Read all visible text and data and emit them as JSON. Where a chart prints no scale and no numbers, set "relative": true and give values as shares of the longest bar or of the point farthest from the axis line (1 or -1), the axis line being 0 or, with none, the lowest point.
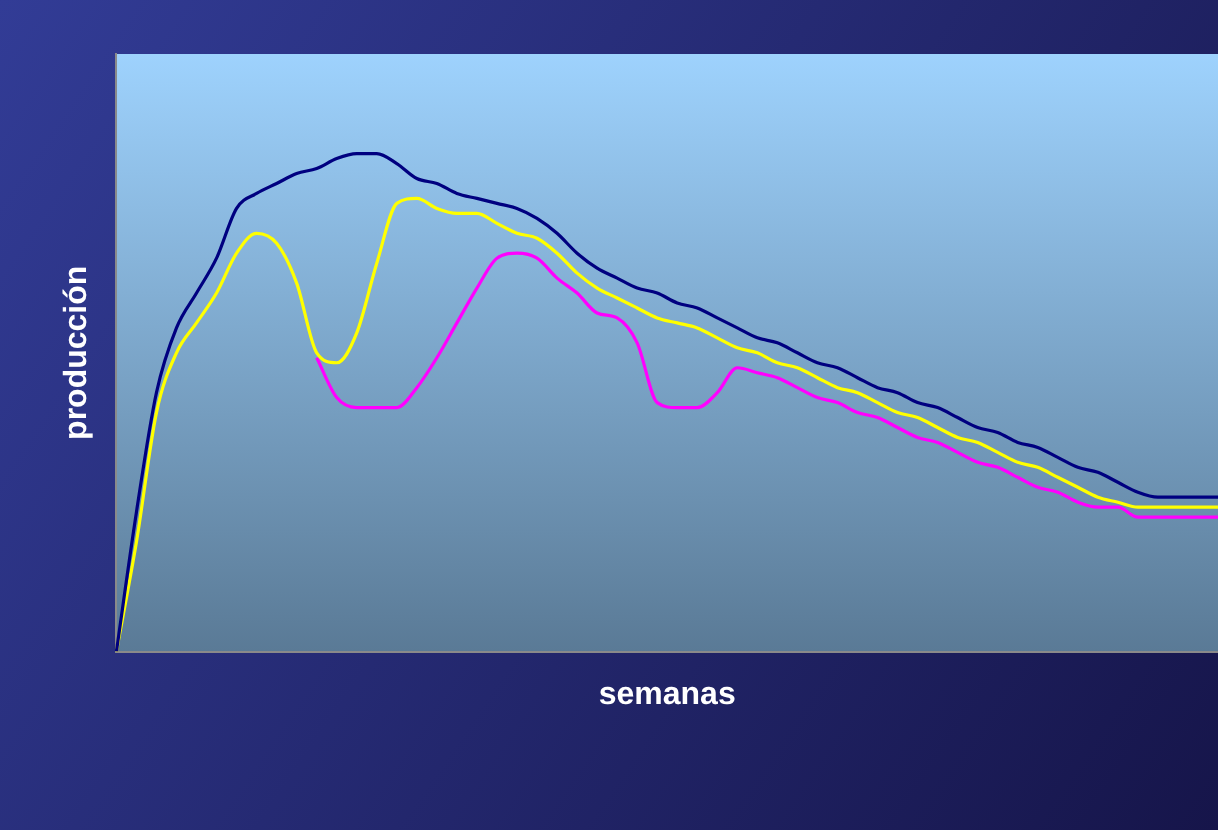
{
  "chart_data": {
    "type": "line",
    "relative": true,
    "xlabel": "semanas",
    "ylabel": "producción",
    "categories": [
      null,
      null,
      null,
      null,
      null,
      null,
      null,
      null,
      null,
      null,
      null,
      null,
      null,
      null,
      null,
      null,
      null,
      null,
      null,
      null,
      null,
      null,
      null,
      null,
      null,
      null,
      null,
      null,
      null,
      null,
      null,
      null,
      null,
      null,
      null,
      null,
      null,
      null,
      null,
      null,
      null,
      null,
      null,
      null,
      null,
      null,
      null,
      null,
      null,
      null,
      null,
      null,
      null,
      null,
      null,
      null
    ],
    "series": [
      {
        "color": "#000080",
        "values": [
          0,
          0.28,
          0.52,
          0.65,
          0.72,
          0.79,
          0.89,
          0.92,
          0.94,
          0.96,
          0.97,
          0.99,
          1,
          1,
          0.98,
          0.95,
          0.94,
          0.92,
          0.91,
          0.9,
          0.89,
          0.87,
          0.84,
          0.8,
          0.77,
          0.75,
          0.73,
          0.72,
          0.7,
          0.69,
          0.67,
          0.65,
          0.63,
          0.62,
          0.6,
          0.58,
          0.57,
          0.55,
          0.53,
          0.52,
          0.5,
          0.49,
          0.47,
          0.45,
          0.44,
          0.42,
          0.41,
          0.39,
          0.37,
          0.36,
          0.34,
          0.32,
          0.31,
          0.31,
          0.31,
          0.31
        ]
      },
      {
        "color": "#ffff00",
        "values": [
          0,
          0.22,
          0.48,
          0.6,
          0.66,
          0.72,
          0.8,
          0.84,
          0.82,
          0.74,
          0.6,
          0.58,
          0.64,
          0.78,
          0.9,
          0.91,
          0.89,
          0.88,
          0.88,
          0.86,
          0.84,
          0.83,
          0.8,
          0.76,
          0.73,
          0.71,
          0.69,
          0.67,
          0.66,
          0.65,
          0.63,
          0.61,
          0.6,
          0.58,
          0.57,
          0.55,
          0.53,
          0.52,
          0.5,
          0.48,
          0.47,
          0.45,
          0.43,
          0.42,
          0.4,
          0.38,
          0.37,
          0.35,
          0.33,
          0.31,
          0.3,
          0.29,
          0.29,
          0.29,
          0.29,
          0.29
        ]
      },
      {
        "color": "#ff00ff",
        "values": [
          null,
          null,
          null,
          null,
          null,
          null,
          null,
          null,
          null,
          null,
          0.59,
          0.51,
          0.49,
          0.49,
          0.49,
          0.53,
          0.59,
          0.66,
          0.73,
          0.79,
          0.8,
          0.79,
          0.75,
          0.72,
          0.68,
          0.67,
          0.62,
          0.5,
          0.49,
          0.49,
          0.52,
          0.57,
          0.56,
          0.55,
          0.53,
          0.51,
          0.5,
          0.48,
          0.47,
          0.45,
          0.43,
          0.42,
          0.4,
          0.38,
          0.37,
          0.35,
          0.33,
          0.32,
          0.3,
          0.29,
          0.29,
          0.27,
          0.27,
          0.27,
          0.27,
          0.27
        ]
      }
    ]
  }
}
